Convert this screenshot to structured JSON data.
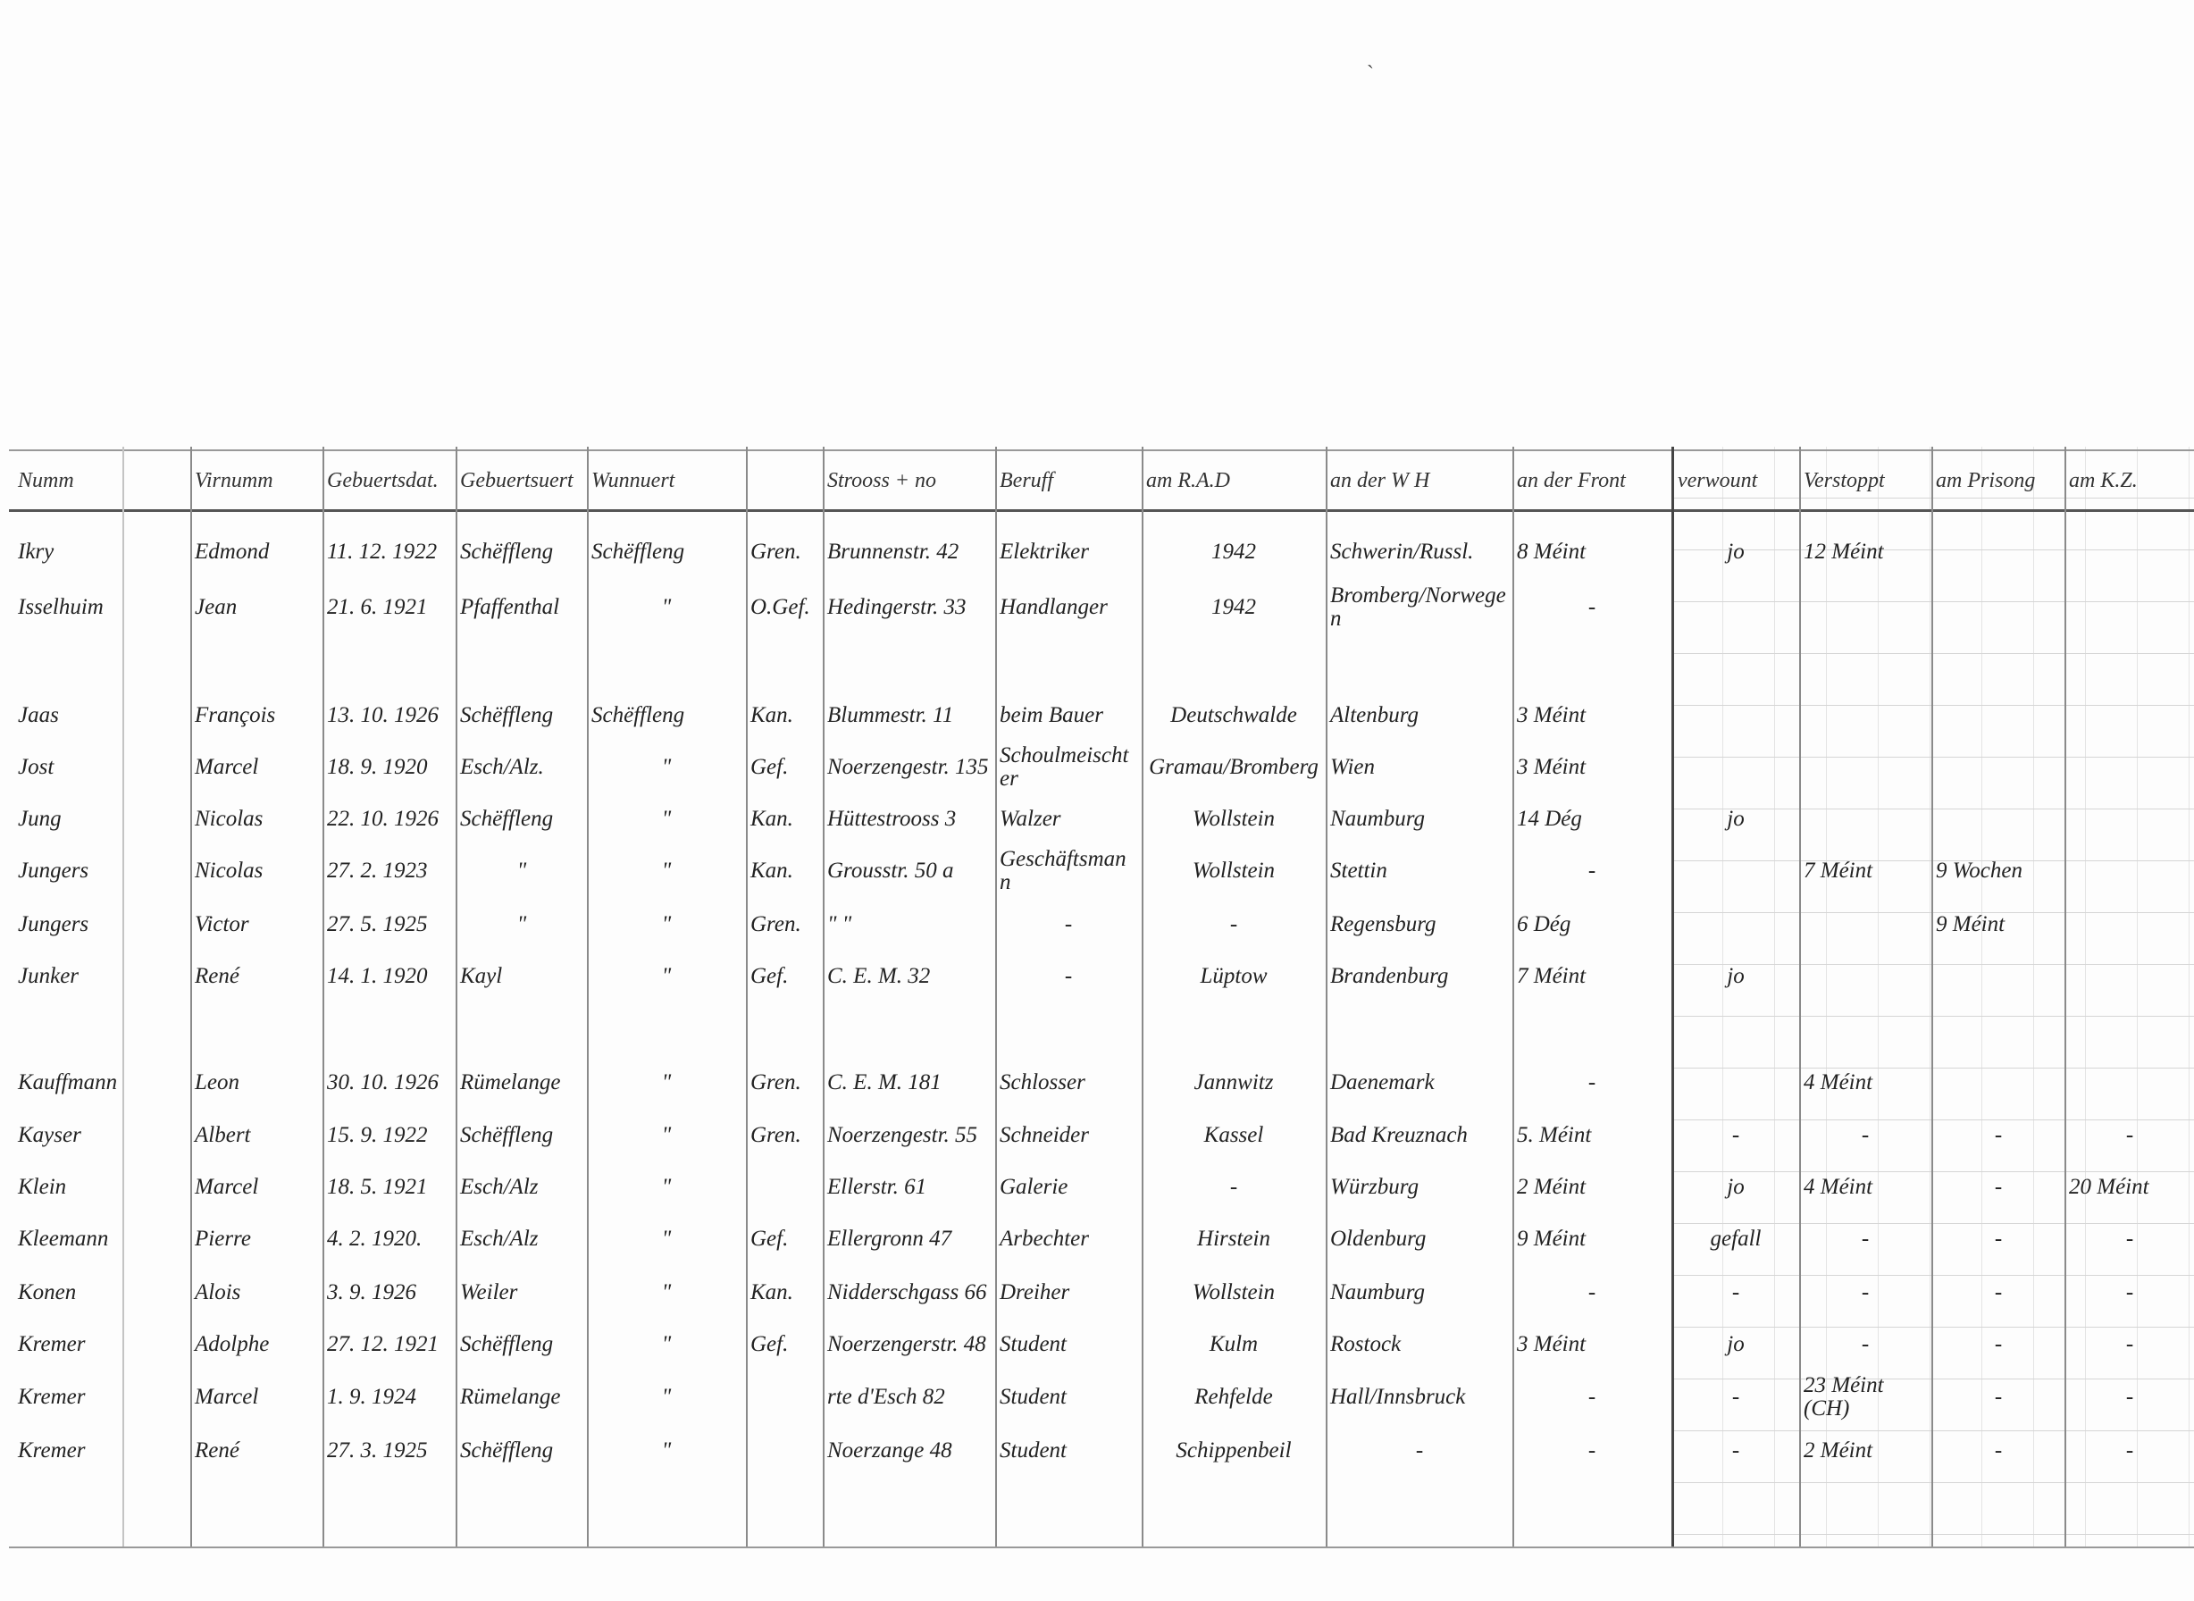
{
  "columns": [
    "Numm",
    "Virnumm",
    "Gebuertsdat.",
    "Gebuertsuert",
    "Wunnuert",
    "",
    "Strooss + no",
    "Beruff",
    "am R.A.D",
    "an der W H",
    "an der Front",
    "verwount",
    "Verstoppt",
    "am Prisong",
    "am K.Z."
  ],
  "rows": [
    [
      "Ikry",
      "Edmond",
      "11. 12. 1922",
      "Schëffleng",
      "Schëffleng",
      "Gren.",
      "Brunnenstr. 42",
      "Elektriker",
      "1942",
      "Schwerin/Russl.",
      "8 Méint",
      "jo",
      "12 Méint",
      "",
      ""
    ],
    [
      "Isselhuim",
      "Jean",
      "21. 6. 1921",
      "Pfaffenthal",
      "\"",
      "O.Gef.",
      "Hedingerstr. 33",
      "Handlanger",
      "1942",
      "Bromberg/Norwegen",
      "-",
      "",
      "",
      "",
      ""
    ],
    [
      "Jaas",
      "François",
      "13. 10. 1926",
      "Schëffleng",
      "Schëffleng",
      "Kan.",
      "Blummestr. 11",
      "beim Bauer",
      "Deutschwalde",
      "Altenburg",
      "3 Méint",
      "",
      "",
      "",
      ""
    ],
    [
      "Jost",
      "Marcel",
      "18. 9. 1920",
      "Esch/Alz.",
      "\"",
      "Gef.",
      "Noerzengestr. 135",
      "Schoulmeischter",
      "Gramau/Bromberg",
      "Wien",
      "3 Méint",
      "",
      "",
      "",
      ""
    ],
    [
      "Jung",
      "Nicolas",
      "22. 10. 1926",
      "Schëffleng",
      "\"",
      "Kan.",
      "Hüttestrooss 3",
      "Walzer",
      "Wollstein",
      "Naumburg",
      "14 Dég",
      "jo",
      "",
      "",
      ""
    ],
    [
      "Jungers",
      "Nicolas",
      "27. 2. 1923",
      "\"",
      "\"",
      "Kan.",
      "Grousstr. 50 a",
      "Geschäftsmann",
      "Wollstein",
      "Stettin",
      "-",
      "",
      "7 Méint",
      "9 Wochen",
      ""
    ],
    [
      "Jungers",
      "Victor",
      "27. 5. 1925",
      "\"",
      "\"",
      "Gren.",
      "\"   \"",
      "-",
      "-",
      "Regensburg",
      "6 Dég",
      "",
      "",
      "9 Méint",
      ""
    ],
    [
      "Junker",
      "René",
      "14. 1. 1920",
      "Kayl",
      "\"",
      "Gef.",
      "C. E. M. 32",
      "-",
      "Lüptow",
      "Brandenburg",
      "7 Méint",
      "jo",
      "",
      "",
      ""
    ],
    [
      "Kauffmann",
      "Leon",
      "30. 10. 1926",
      "Rümelange",
      "\"",
      "Gren.",
      "C. E. M. 181",
      "Schlosser",
      "Jannwitz",
      "Daenemark",
      "-",
      "",
      "4 Méint",
      "",
      ""
    ],
    [
      "Kayser",
      "Albert",
      "15. 9. 1922",
      "Schëffleng",
      "\"",
      "Gren.",
      "Noerzengestr. 55",
      "Schneider",
      "Kassel",
      "Bad Kreuznach",
      "5. Méint",
      "-",
      "-",
      "-",
      "-"
    ],
    [
      "Klein",
      "Marcel",
      "18. 5. 1921",
      "Esch/Alz",
      "\"",
      "",
      "Ellerstr. 61",
      "Galerie",
      "-",
      "Würzburg",
      "2 Méint",
      "jo",
      "4 Méint",
      "-",
      "20 Méint"
    ],
    [
      "Kleemann",
      "Pierre",
      "4. 2. 1920.",
      "Esch/Alz",
      "\"",
      "Gef.",
      "Ellergronn 47",
      "Arbechter",
      "Hirstein",
      "Oldenburg",
      "9 Méint",
      "gefall",
      "-",
      "-",
      "-"
    ],
    [
      "Konen",
      "Alois",
      "3. 9. 1926",
      "Weiler",
      "\"",
      "Kan.",
      "Nidderschgass 66",
      "Dreiher",
      "Wollstein",
      "Naumburg",
      "-",
      "-",
      "-",
      "-",
      "-"
    ],
    [
      "Kremer",
      "Adolphe",
      "27. 12. 1921",
      "Schëffleng",
      "\"",
      "Gef.",
      "Noerzengerstr. 48",
      "Student",
      "Kulm",
      "Rostock",
      "3 Méint",
      "jo",
      "-",
      "-",
      "-"
    ],
    [
      "Kremer",
      "Marcel",
      "1. 9. 1924",
      "Rümelange",
      "\"",
      "",
      "rte d'Esch 82",
      "Student",
      "Rehfelde",
      "Hall/Innsbruck",
      "-",
      "-",
      "23 Méint (CH)",
      "-",
      "-"
    ],
    [
      "Kremer",
      "René",
      "27. 3. 1925",
      "Schëffleng",
      "\"",
      "",
      "Noerzange 48",
      "Student",
      "Schippenbeil",
      "-",
      "-",
      "-",
      "2 Méint",
      "-",
      "-"
    ]
  ]
}
